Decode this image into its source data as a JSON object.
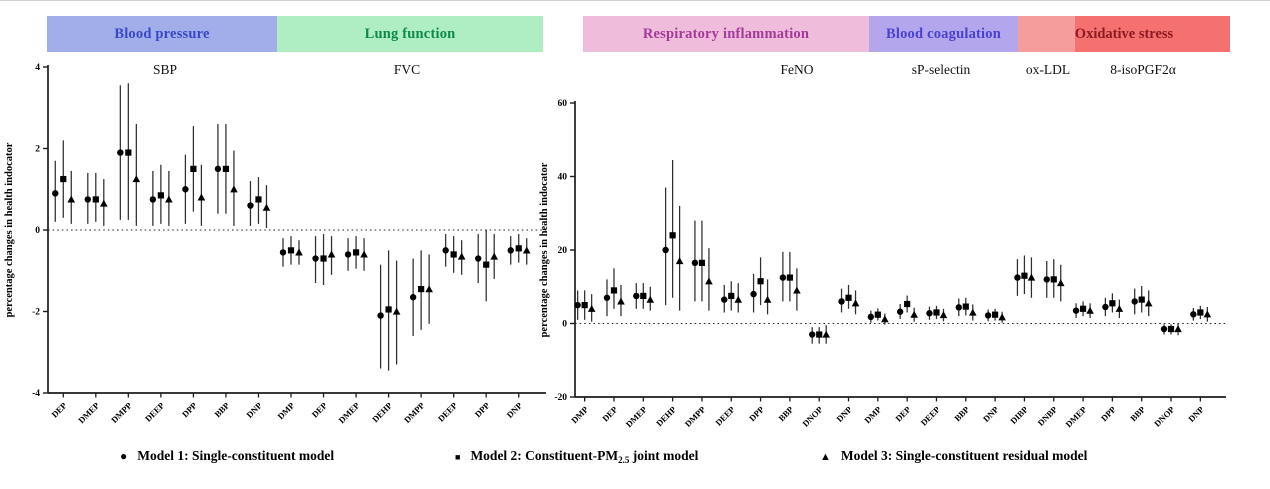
{
  "header": {
    "bands": [
      {
        "label": "Blood pressure",
        "bg": "#a2aeea",
        "color": "#3848c5"
      },
      {
        "label": "Lung function",
        "bg": "#aeeec2",
        "color": "#0d8a47"
      },
      {
        "label": "Respiratory inflammation",
        "bg": "#f0bcdb",
        "color": "#a23a99"
      },
      {
        "label": "Blood coagulation",
        "bg": "#b4a6ec",
        "color": "#4a41d0"
      },
      {
        "label": "Oxidative stress",
        "bg": "#f59c9c",
        "bg2": "#f47170",
        "color": "#8c1a22"
      }
    ]
  },
  "legend": {
    "items": [
      {
        "marker": "circle",
        "prefix": "Model 1: Single-constituent model",
        "sub": "",
        "suffix": ""
      },
      {
        "marker": "square",
        "prefix": "Model 2: Constituent-PM",
        "sub": "2.5",
        "suffix": " joint model"
      },
      {
        "marker": "triangle",
        "prefix": "Model 3: Single-constituent residual model",
        "sub": "",
        "suffix": ""
      }
    ]
  },
  "chart_data": [
    {
      "type": "scatter",
      "panel": "left",
      "ylabel": "percentage changes in health indocator",
      "xlabel": "",
      "ylim": [
        -4,
        4
      ],
      "yticks": [
        4,
        2,
        0,
        -2,
        -4
      ],
      "grid": false,
      "zero_line_dotted": true,
      "legend_position": "bottom",
      "series_names": [
        "Model 1: Single-constituent model",
        "Model 2: Constituent-PM2.5 joint model",
        "Model 3: Single-constituent residual model"
      ],
      "series_markers": [
        "circle",
        "square",
        "triangle"
      ],
      "sections": [
        {
          "title": "SBP",
          "band": "Blood pressure",
          "groups": [
            {
              "label": "DEP",
              "m": [
                [
                  0.9,
                  0.2,
                  1.7
                ],
                [
                  1.25,
                  0.3,
                  2.2
                ],
                [
                  0.75,
                  0.15,
                  1.45
                ]
              ]
            },
            {
              "label": "DMEP",
              "m": [
                [
                  0.75,
                  0.15,
                  1.4
                ],
                [
                  0.75,
                  0.2,
                  1.4
                ],
                [
                  0.65,
                  0.1,
                  1.25
                ]
              ]
            },
            {
              "label": "DMPP",
              "m": [
                [
                  1.9,
                  0.25,
                  3.55
                ],
                [
                  1.9,
                  0.25,
                  3.6
                ],
                [
                  1.25,
                  0.1,
                  2.6
                ]
              ]
            },
            {
              "label": "DEEP",
              "m": [
                [
                  0.75,
                  0.1,
                  1.45
                ],
                [
                  0.85,
                  0.15,
                  1.6
                ],
                [
                  0.75,
                  0.1,
                  1.45
                ]
              ]
            },
            {
              "label": "DPP",
              "m": [
                [
                  1.0,
                  0.15,
                  1.85
                ],
                [
                  1.5,
                  0.45,
                  2.55
                ],
                [
                  0.8,
                  0.1,
                  1.6
                ]
              ]
            },
            {
              "label": "BBP",
              "m": [
                [
                  1.5,
                  0.4,
                  2.6
                ],
                [
                  1.5,
                  0.4,
                  2.6
                ],
                [
                  1.0,
                  0.1,
                  1.95
                ]
              ]
            },
            {
              "label": "DNP",
              "m": [
                [
                  0.6,
                  0.1,
                  1.2
                ],
                [
                  0.75,
                  0.15,
                  1.3
                ],
                [
                  0.55,
                  0.05,
                  1.1
                ]
              ]
            }
          ]
        },
        {
          "title": "FVC",
          "band": "Lung function",
          "groups": [
            {
              "label": "DMP",
              "m": [
                [
                  -0.55,
                  -0.9,
                  -0.2
                ],
                [
                  -0.5,
                  -0.85,
                  -0.15
                ],
                [
                  -0.55,
                  -0.85,
                  -0.25
                ]
              ]
            },
            {
              "label": "DEP",
              "m": [
                [
                  -0.7,
                  -1.3,
                  -0.15
                ],
                [
                  -0.7,
                  -1.35,
                  -0.1
                ],
                [
                  -0.6,
                  -1.1,
                  -0.15
                ]
              ]
            },
            {
              "label": "DMEP",
              "m": [
                [
                  -0.6,
                  -1.0,
                  -0.2
                ],
                [
                  -0.55,
                  -0.95,
                  -0.15
                ],
                [
                  -0.6,
                  -1.0,
                  -0.2
                ]
              ]
            },
            {
              "label": "DEHP",
              "m": [
                [
                  -2.1,
                  -3.4,
                  -0.85
                ],
                [
                  -1.95,
                  -3.45,
                  -0.5
                ],
                [
                  -2.0,
                  -3.3,
                  -0.75
                ]
              ]
            },
            {
              "label": "DMPP",
              "m": [
                [
                  -1.65,
                  -2.6,
                  -0.7
                ],
                [
                  -1.45,
                  -2.45,
                  -0.5
                ],
                [
                  -1.45,
                  -2.3,
                  -0.6
                ]
              ]
            },
            {
              "label": "DEEP",
              "m": [
                [
                  -0.5,
                  -0.9,
                  -0.1
                ],
                [
                  -0.6,
                  -1.05,
                  -0.15
                ],
                [
                  -0.65,
                  -1.1,
                  -0.25
                ]
              ]
            },
            {
              "label": "DPP",
              "m": [
                [
                  -0.7,
                  -1.3,
                  -0.1
                ],
                [
                  -0.85,
                  -1.75,
                  0.0
                ],
                [
                  -0.65,
                  -1.2,
                  -0.1
                ]
              ]
            },
            {
              "label": "DNP",
              "m": [
                [
                  -0.5,
                  -0.85,
                  -0.15
                ],
                [
                  -0.45,
                  -0.8,
                  -0.1
                ],
                [
                  -0.5,
                  -0.85,
                  -0.2
                ]
              ]
            }
          ]
        }
      ]
    },
    {
      "type": "scatter",
      "panel": "right",
      "ylabel": "percentage changes in health indocator",
      "xlabel": "",
      "ylim": [
        -20,
        60
      ],
      "yticks": [
        60,
        40,
        20,
        0,
        -20
      ],
      "grid": false,
      "zero_line_dotted": true,
      "legend_position": "bottom",
      "series_names": [
        "Model 1: Single-constituent model",
        "Model 2: Constituent-PM2.5 joint model",
        "Model 3: Single-constituent residual model"
      ],
      "series_markers": [
        "circle",
        "square",
        "triangle"
      ],
      "sections": [
        {
          "title": "FeNO",
          "band": "Respiratory inflammation",
          "groups": [
            {
              "label": "DMP",
              "m": [
                [
                  5,
                  1,
                  9
                ],
                [
                  5,
                  1,
                  9
                ],
                [
                  4,
                  0.5,
                  8
                ]
              ]
            },
            {
              "label": "DEP",
              "m": [
                [
                  7,
                  2,
                  12
                ],
                [
                  9,
                  4,
                  15
                ],
                [
                  6,
                  2,
                  10.5
                ]
              ]
            },
            {
              "label": "DMEP",
              "m": [
                [
                  7.5,
                  4,
                  11
                ],
                [
                  7.5,
                  4,
                  11
                ],
                [
                  6.5,
                  3.5,
                  10
                ]
              ]
            },
            {
              "label": "DEHP",
              "m": [
                [
                  20,
                  5,
                  37
                ],
                [
                  24,
                  7,
                  44.5
                ],
                [
                  17,
                  3.5,
                  32
                ]
              ]
            },
            {
              "label": "DMPP",
              "m": [
                [
                  16.5,
                  6,
                  28
                ],
                [
                  16.5,
                  6,
                  28
                ],
                [
                  11.5,
                  3.5,
                  20.5
                ]
              ]
            },
            {
              "label": "DEEP",
              "m": [
                [
                  6.5,
                  3,
                  10.5
                ],
                [
                  7.5,
                  3.5,
                  11.5
                ],
                [
                  6.5,
                  3,
                  11
                ]
              ]
            },
            {
              "label": "DPP",
              "m": [
                [
                  8,
                  3,
                  13.5
                ],
                [
                  11.5,
                  5,
                  18
                ],
                [
                  6.5,
                  2.5,
                  12
                ]
              ]
            },
            {
              "label": "BBP",
              "m": [
                [
                  12.5,
                  6,
                  19.5
                ],
                [
                  12.5,
                  6,
                  19.5
                ],
                [
                  9,
                  3.5,
                  15
                ]
              ]
            },
            {
              "label": "DNOP",
              "m": [
                [
                  -3,
                  -5.5,
                  -1
                ],
                [
                  -3,
                  -5.5,
                  -1
                ],
                [
                  -3,
                  -5.5,
                  -0.5
                ]
              ]
            },
            {
              "label": "DNP",
              "m": [
                [
                  6,
                  3,
                  9.5
                ],
                [
                  7,
                  4,
                  10.5
                ],
                [
                  5.5,
                  2.5,
                  9
                ]
              ]
            }
          ]
        },
        {
          "title": "sP-selectin",
          "band": "Blood coagulation",
          "groups": [
            {
              "label": "DMP",
              "m": [
                [
                  1.8,
                  0.2,
                  3.5
                ],
                [
                  2.4,
                  0.8,
                  4.1
                ],
                [
                  1.2,
                  -0.3,
                  2.7
                ]
              ]
            },
            {
              "label": "DEP",
              "m": [
                [
                  3.2,
                  1.2,
                  5.3
                ],
                [
                  5.3,
                  3.0,
                  7.6
                ],
                [
                  2.4,
                  0.5,
                  4.3
                ]
              ]
            },
            {
              "label": "DEEP",
              "m": [
                [
                  2.8,
                  1.0,
                  4.6
                ],
                [
                  3.0,
                  1.2,
                  4.8
                ],
                [
                  2.3,
                  0.6,
                  4.0
                ]
              ]
            },
            {
              "label": "BBP",
              "m": [
                [
                  4.4,
                  2.0,
                  6.8
                ],
                [
                  4.6,
                  2.2,
                  7.0
                ],
                [
                  3.0,
                  0.8,
                  5.2
                ]
              ]
            },
            {
              "label": "DNP",
              "m": [
                [
                  2.2,
                  0.6,
                  3.8
                ],
                [
                  2.4,
                  0.8,
                  4.0
                ],
                [
                  1.7,
                  0.2,
                  3.2
                ]
              ]
            }
          ]
        },
        {
          "title": "ox-LDL",
          "band": "Oxidative stress",
          "groups": [
            {
              "label": "DIBP",
              "m": [
                [
                  12.5,
                  7.5,
                  17.5
                ],
                [
                  13,
                  8,
                  18.5
                ],
                [
                  12.5,
                  7,
                  18
                ]
              ]
            },
            {
              "label": "DNBP",
              "m": [
                [
                  12,
                  7,
                  17
                ],
                [
                  12,
                  7,
                  17.5
                ],
                [
                  11,
                  6,
                  16
                ]
              ]
            }
          ]
        },
        {
          "title": "8-isoPGF2α",
          "band": "Oxidative stress",
          "groups": [
            {
              "label": "DMEP",
              "m": [
                [
                  3.5,
                  1.5,
                  5.5
                ],
                [
                  4,
                  2,
                  6
                ],
                [
                  3.5,
                  1.5,
                  5.5
                ]
              ]
            },
            {
              "label": "DPP",
              "m": [
                [
                  4.5,
                  2,
                  7
                ],
                [
                  5.5,
                  3,
                  8.2
                ],
                [
                  4,
                  1.5,
                  6.5
                ]
              ]
            },
            {
              "label": "BBP",
              "m": [
                [
                  6,
                  2.5,
                  9.5
                ],
                [
                  6.5,
                  3,
                  10.2
                ],
                [
                  5.5,
                  2,
                  9
                ]
              ]
            },
            {
              "label": "DNOP",
              "m": [
                [
                  -1.5,
                  -3,
                  -0.2
                ],
                [
                  -1.5,
                  -3,
                  -0.2
                ],
                [
                  -1.5,
                  -3.2,
                  0
                ]
              ]
            },
            {
              "label": "DNP",
              "m": [
                [
                  2.5,
                  0.8,
                  4.2
                ],
                [
                  3,
                  1.2,
                  4.8
                ],
                [
                  2.5,
                  0.5,
                  4.5
                ]
              ]
            }
          ]
        }
      ]
    }
  ]
}
